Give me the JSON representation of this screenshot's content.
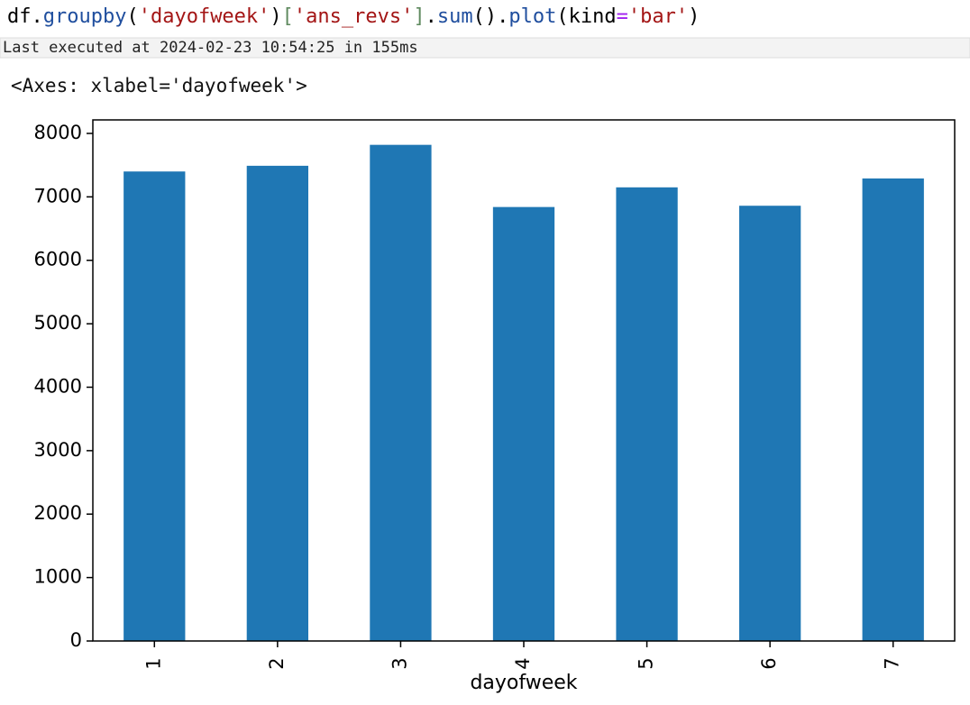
{
  "cell": {
    "code": [
      {
        "text": "df.",
        "color": "#000000"
      },
      {
        "text": "groupby",
        "color": "#1f4e9e"
      },
      {
        "text": "(",
        "color": "#000000"
      },
      {
        "text": "'dayofweek'",
        "color": "#a31515"
      },
      {
        "text": ")",
        "color": "#000000"
      },
      {
        "text": "[",
        "color": "#5f8a5f"
      },
      {
        "text": "'ans_revs'",
        "color": "#a31515"
      },
      {
        "text": "]",
        "color": "#5f8a5f"
      },
      {
        "text": ".",
        "color": "#000000"
      },
      {
        "text": "sum",
        "color": "#1f4e9e"
      },
      {
        "text": "().",
        "color": "#000000"
      },
      {
        "text": "plot",
        "color": "#1f4e9e"
      },
      {
        "text": "(kind",
        "color": "#000000"
      },
      {
        "text": "=",
        "color": "#a020f0"
      },
      {
        "text": "'bar'",
        "color": "#a31515"
      },
      {
        "text": ")",
        "color": "#000000"
      }
    ],
    "status": "Last executed at 2024-02-23 10:54:25 in 155ms",
    "output": "<Axes: xlabel='dayofweek'>"
  },
  "chart_data": {
    "type": "bar",
    "xlabel": "dayofweek",
    "categories": [
      "1",
      "2",
      "3",
      "4",
      "5",
      "6",
      "7"
    ],
    "values": [
      7400,
      7490,
      7820,
      6840,
      7150,
      6860,
      7290
    ],
    "color": "#1f77b4",
    "ylim": [
      0,
      8213
    ],
    "yticks": [
      0,
      1000,
      2000,
      3000,
      4000,
      5000,
      6000,
      7000,
      8000
    ]
  }
}
